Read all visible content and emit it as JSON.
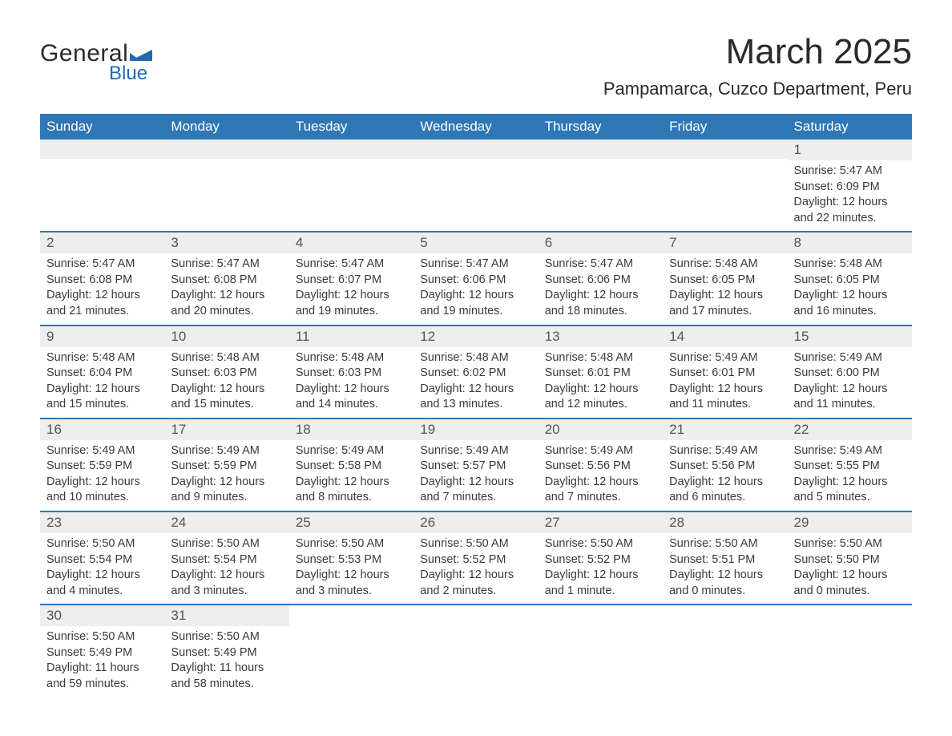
{
  "logo": {
    "text1": "General",
    "text2": "Blue",
    "flag_color": "#1f6bb0"
  },
  "title": "March 2025",
  "location": "Pampamarca, Cuzco Department, Peru",
  "colors": {
    "header_bg": "#2f77b6",
    "header_text": "#ffffff",
    "daynum_bg": "#eeeeee",
    "row_border": "#2f77b6",
    "body_text": "#3a3a3a"
  },
  "weekdays": [
    "Sunday",
    "Monday",
    "Tuesday",
    "Wednesday",
    "Thursday",
    "Friday",
    "Saturday"
  ],
  "weeks": [
    [
      null,
      null,
      null,
      null,
      null,
      null,
      {
        "n": "1",
        "sr": "Sunrise: 5:47 AM",
        "ss": "Sunset: 6:09 PM",
        "dl": "Daylight: 12 hours and 22 minutes."
      }
    ],
    [
      {
        "n": "2",
        "sr": "Sunrise: 5:47 AM",
        "ss": "Sunset: 6:08 PM",
        "dl": "Daylight: 12 hours and 21 minutes."
      },
      {
        "n": "3",
        "sr": "Sunrise: 5:47 AM",
        "ss": "Sunset: 6:08 PM",
        "dl": "Daylight: 12 hours and 20 minutes."
      },
      {
        "n": "4",
        "sr": "Sunrise: 5:47 AM",
        "ss": "Sunset: 6:07 PM",
        "dl": "Daylight: 12 hours and 19 minutes."
      },
      {
        "n": "5",
        "sr": "Sunrise: 5:47 AM",
        "ss": "Sunset: 6:06 PM",
        "dl": "Daylight: 12 hours and 19 minutes."
      },
      {
        "n": "6",
        "sr": "Sunrise: 5:47 AM",
        "ss": "Sunset: 6:06 PM",
        "dl": "Daylight: 12 hours and 18 minutes."
      },
      {
        "n": "7",
        "sr": "Sunrise: 5:48 AM",
        "ss": "Sunset: 6:05 PM",
        "dl": "Daylight: 12 hours and 17 minutes."
      },
      {
        "n": "8",
        "sr": "Sunrise: 5:48 AM",
        "ss": "Sunset: 6:05 PM",
        "dl": "Daylight: 12 hours and 16 minutes."
      }
    ],
    [
      {
        "n": "9",
        "sr": "Sunrise: 5:48 AM",
        "ss": "Sunset: 6:04 PM",
        "dl": "Daylight: 12 hours and 15 minutes."
      },
      {
        "n": "10",
        "sr": "Sunrise: 5:48 AM",
        "ss": "Sunset: 6:03 PM",
        "dl": "Daylight: 12 hours and 15 minutes."
      },
      {
        "n": "11",
        "sr": "Sunrise: 5:48 AM",
        "ss": "Sunset: 6:03 PM",
        "dl": "Daylight: 12 hours and 14 minutes."
      },
      {
        "n": "12",
        "sr": "Sunrise: 5:48 AM",
        "ss": "Sunset: 6:02 PM",
        "dl": "Daylight: 12 hours and 13 minutes."
      },
      {
        "n": "13",
        "sr": "Sunrise: 5:48 AM",
        "ss": "Sunset: 6:01 PM",
        "dl": "Daylight: 12 hours and 12 minutes."
      },
      {
        "n": "14",
        "sr": "Sunrise: 5:49 AM",
        "ss": "Sunset: 6:01 PM",
        "dl": "Daylight: 12 hours and 11 minutes."
      },
      {
        "n": "15",
        "sr": "Sunrise: 5:49 AM",
        "ss": "Sunset: 6:00 PM",
        "dl": "Daylight: 12 hours and 11 minutes."
      }
    ],
    [
      {
        "n": "16",
        "sr": "Sunrise: 5:49 AM",
        "ss": "Sunset: 5:59 PM",
        "dl": "Daylight: 12 hours and 10 minutes."
      },
      {
        "n": "17",
        "sr": "Sunrise: 5:49 AM",
        "ss": "Sunset: 5:59 PM",
        "dl": "Daylight: 12 hours and 9 minutes."
      },
      {
        "n": "18",
        "sr": "Sunrise: 5:49 AM",
        "ss": "Sunset: 5:58 PM",
        "dl": "Daylight: 12 hours and 8 minutes."
      },
      {
        "n": "19",
        "sr": "Sunrise: 5:49 AM",
        "ss": "Sunset: 5:57 PM",
        "dl": "Daylight: 12 hours and 7 minutes."
      },
      {
        "n": "20",
        "sr": "Sunrise: 5:49 AM",
        "ss": "Sunset: 5:56 PM",
        "dl": "Daylight: 12 hours and 7 minutes."
      },
      {
        "n": "21",
        "sr": "Sunrise: 5:49 AM",
        "ss": "Sunset: 5:56 PM",
        "dl": "Daylight: 12 hours and 6 minutes."
      },
      {
        "n": "22",
        "sr": "Sunrise: 5:49 AM",
        "ss": "Sunset: 5:55 PM",
        "dl": "Daylight: 12 hours and 5 minutes."
      }
    ],
    [
      {
        "n": "23",
        "sr": "Sunrise: 5:50 AM",
        "ss": "Sunset: 5:54 PM",
        "dl": "Daylight: 12 hours and 4 minutes."
      },
      {
        "n": "24",
        "sr": "Sunrise: 5:50 AM",
        "ss": "Sunset: 5:54 PM",
        "dl": "Daylight: 12 hours and 3 minutes."
      },
      {
        "n": "25",
        "sr": "Sunrise: 5:50 AM",
        "ss": "Sunset: 5:53 PM",
        "dl": "Daylight: 12 hours and 3 minutes."
      },
      {
        "n": "26",
        "sr": "Sunrise: 5:50 AM",
        "ss": "Sunset: 5:52 PM",
        "dl": "Daylight: 12 hours and 2 minutes."
      },
      {
        "n": "27",
        "sr": "Sunrise: 5:50 AM",
        "ss": "Sunset: 5:52 PM",
        "dl": "Daylight: 12 hours and 1 minute."
      },
      {
        "n": "28",
        "sr": "Sunrise: 5:50 AM",
        "ss": "Sunset: 5:51 PM",
        "dl": "Daylight: 12 hours and 0 minutes."
      },
      {
        "n": "29",
        "sr": "Sunrise: 5:50 AM",
        "ss": "Sunset: 5:50 PM",
        "dl": "Daylight: 12 hours and 0 minutes."
      }
    ],
    [
      {
        "n": "30",
        "sr": "Sunrise: 5:50 AM",
        "ss": "Sunset: 5:49 PM",
        "dl": "Daylight: 11 hours and 59 minutes."
      },
      {
        "n": "31",
        "sr": "Sunrise: 5:50 AM",
        "ss": "Sunset: 5:49 PM",
        "dl": "Daylight: 11 hours and 58 minutes."
      },
      null,
      null,
      null,
      null,
      null
    ]
  ]
}
